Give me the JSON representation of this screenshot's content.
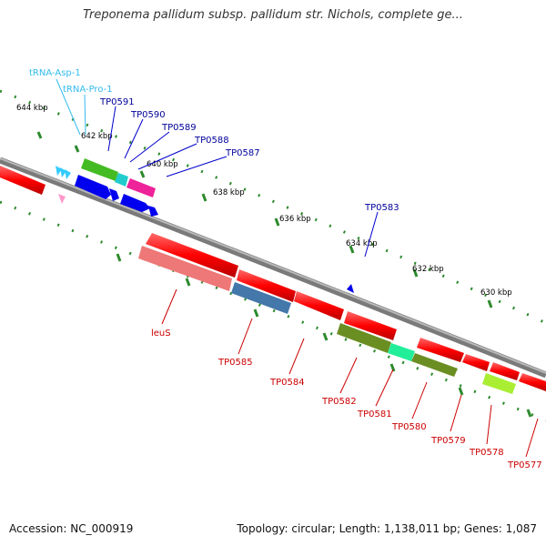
{
  "title": "Treponema pallidum subsp. pallidum str. Nichols, complete ge...",
  "footer": {
    "accession": "Accession: NC_000919",
    "summary": "Topology: circular; Length: 1,138,011 bp; Genes: 1,087"
  },
  "scale_ticks": [
    "644 kbp",
    "642 kbp",
    "640 kbp",
    "638 kbp",
    "636 kbp",
    "634 kbp",
    "632 kbp",
    "630 kbp"
  ],
  "features": {
    "trna_asp": "tRNA-Asp-1",
    "trna_pro": "tRNA-Pro-1",
    "tp0591": "TP0591",
    "tp0590": "TP0590",
    "tp0589": "TP0589",
    "tp0588": "TP0588",
    "tp0587": "TP0587",
    "tp0583": "TP0583",
    "leus": "leuS",
    "tp0585": "TP0585",
    "tp0584": "TP0584",
    "tp0582": "TP0582",
    "tp0581": "TP0581",
    "tp0580": "TP0580",
    "tp0579": "TP0579",
    "tp0578": "TP0578",
    "tp0577": "TP0577"
  },
  "colors": {
    "backbone": "#8a8a8a",
    "cds": "#ff0000",
    "trna": "#33ccff",
    "forward_label": "#000099",
    "reverse_label": "#cc0000",
    "trna_label": "#33bbee",
    "tick": "#2d8a2d"
  }
}
